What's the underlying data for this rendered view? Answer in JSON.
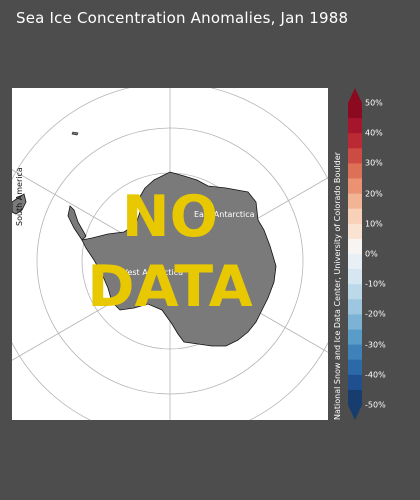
{
  "title": "Sea Ice Concentration Anomalies, Jan 1988",
  "map": {
    "overlay_text": [
      "NO",
      "DATA"
    ],
    "labels": {
      "south_america": "South America",
      "east_antarctica": "East Antarctica",
      "west_antarctica": "West Antarctica"
    },
    "land_color": "#7a7a7a",
    "ocean_color": "#ffffff",
    "grid_color": "#b5b5b5",
    "overlay_color": "#e8c800"
  },
  "legend": {
    "credit": "National Snow and Ice Data Center, University of Colorado Boulder",
    "ticks": [
      "50%",
      "40%",
      "30%",
      "20%",
      "10%",
      "0%",
      "-10%",
      "-20%",
      "-30%",
      "-40%",
      "-50%"
    ],
    "colors": [
      "#8b0a1f",
      "#a5152c",
      "#bb2a34",
      "#cc4c43",
      "#dd7157",
      "#ea9272",
      "#f3b395",
      "#f9d0b8",
      "#fbe3d3",
      "#f7f4f1",
      "#e9f0f5",
      "#d7e7f1",
      "#bcd9ea",
      "#9dc7e0",
      "#7cb3d5",
      "#5a9cc8",
      "#3f82b9",
      "#2c69a8",
      "#1f4f8e",
      "#173c6e"
    ]
  }
}
